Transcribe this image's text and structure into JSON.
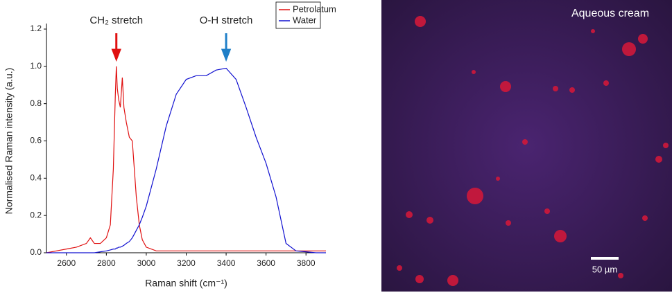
{
  "chart_data": {
    "type": "line",
    "xlabel": "Raman shift (cm⁻¹)",
    "ylabel": "Normalised Raman intensity (a.u.)",
    "x": [
      2500,
      2550,
      2600,
      2650,
      2700,
      2720,
      2740,
      2770,
      2800,
      2820,
      2835,
      2845,
      2850,
      2855,
      2862,
      2870,
      2880,
      2888,
      2900,
      2915,
      2930,
      2940,
      2950,
      2965,
      2980,
      3000,
      3050,
      3100,
      3150,
      3200,
      3250,
      3300,
      3350,
      3400,
      3450,
      3500,
      3550,
      3600,
      3650,
      3700,
      3750,
      3800,
      3850,
      3900
    ],
    "series": [
      {
        "name": "Petrolatum",
        "color": "#e01010",
        "values": [
          0,
          0.01,
          0.02,
          0.03,
          0.05,
          0.08,
          0.05,
          0.05,
          0.08,
          0.15,
          0.45,
          0.85,
          1.0,
          0.88,
          0.82,
          0.78,
          0.94,
          0.78,
          0.7,
          0.62,
          0.6,
          0.45,
          0.3,
          0.15,
          0.07,
          0.03,
          0.01,
          0.01,
          0.01,
          0.01,
          0.01,
          0.01,
          0.01,
          0.01,
          0.01,
          0.01,
          0.01,
          0.01,
          0.01,
          0.01,
          0.01,
          0.01,
          0.01,
          0.01
        ]
      },
      {
        "name": "Water",
        "color": "#1010d0",
        "values": [
          0,
          0,
          0,
          0,
          0,
          0,
          0,
          0.005,
          0.01,
          0.015,
          0.02,
          0.02,
          0.025,
          0.025,
          0.03,
          0.03,
          0.035,
          0.04,
          0.05,
          0.06,
          0.08,
          0.1,
          0.12,
          0.15,
          0.19,
          0.25,
          0.45,
          0.68,
          0.85,
          0.93,
          0.95,
          0.95,
          0.98,
          0.99,
          0.93,
          0.78,
          0.62,
          0.48,
          0.3,
          0.05,
          0.01,
          0.005,
          0,
          0
        ]
      }
    ],
    "xlim": [
      2500,
      3900
    ],
    "xticks": [
      2600,
      2800,
      3000,
      3200,
      3400,
      3600,
      3800
    ],
    "ylim": [
      0,
      1.2
    ],
    "yticks": [
      {
        "value": 0,
        "label": "0.0"
      },
      0.2,
      0.4,
      0.6,
      0.8,
      {
        "value": 1,
        "label": "1.0"
      },
      1.2
    ],
    "legend": "upper right",
    "annotations": [
      {
        "text": "CH₂ stretch",
        "x": 2850,
        "color": "#e01010"
      },
      {
        "text": "O-H stretch",
        "x": 3400,
        "color": "#1f7fc8"
      }
    ]
  },
  "image": {
    "title": "Aqueous cream",
    "scale_bar": "50 µm"
  }
}
